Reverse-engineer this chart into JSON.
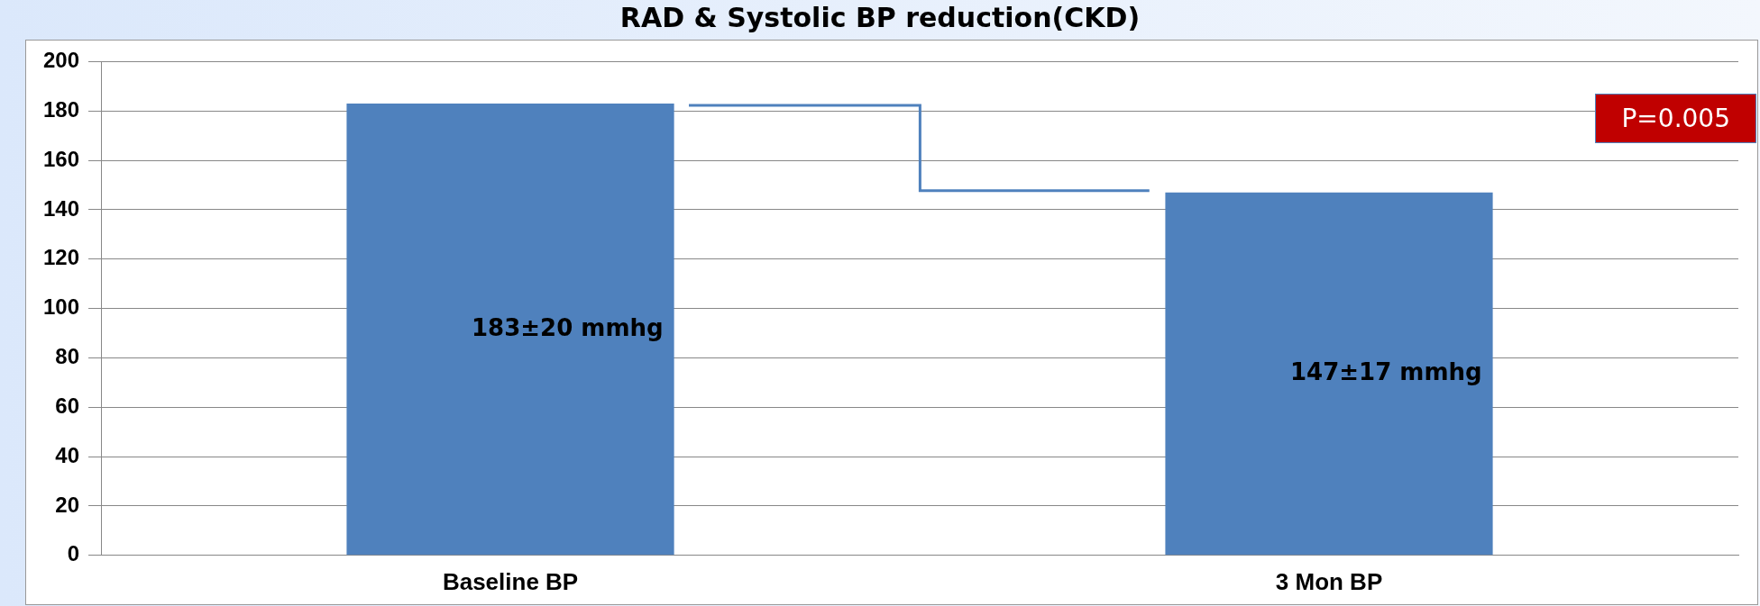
{
  "chart_data": {
    "type": "bar",
    "title": "RAD & Systolic BP reduction(CKD)",
    "categories": [
      "Baseline BP",
      "3 Mon BP"
    ],
    "values": [
      183,
      147
    ],
    "color": "#4f81bd",
    "value_labels": [
      "183±20 mmhg",
      "147±17 mmhg"
    ],
    "ylim": [
      0,
      200
    ],
    "yticks": [
      0,
      20,
      40,
      60,
      80,
      100,
      120,
      140,
      160,
      180,
      200
    ],
    "grid": "y",
    "annotations": [
      "P=0.005"
    ]
  }
}
